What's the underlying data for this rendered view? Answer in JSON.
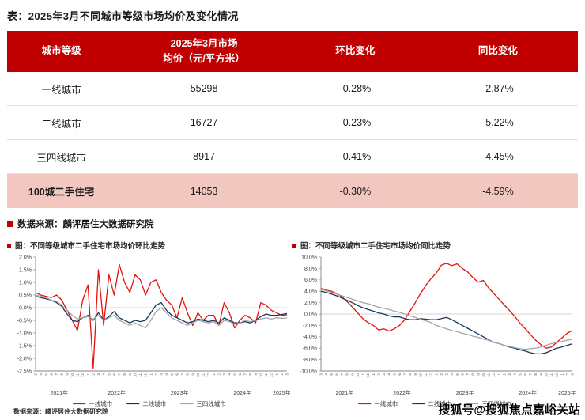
{
  "title": "表：2025年3月不同城市等级市场均价及变化情况",
  "table": {
    "headers": {
      "tier": "城市等级",
      "price_line1": "2025年3月市场",
      "price_line2": "均价（元/平方米）",
      "mom": "环比变化",
      "yoy": "同比变化"
    },
    "rows": [
      {
        "tier": "一线城市",
        "price": "55298",
        "mom": "-0.28%",
        "yoy": "-2.87%"
      },
      {
        "tier": "二线城市",
        "price": "16727",
        "mom": "-0.23%",
        "yoy": "-5.22%"
      },
      {
        "tier": "三四线城市",
        "price": "8917",
        "mom": "-0.41%",
        "yoy": "-4.45%"
      },
      {
        "tier": "100城二手住宅",
        "price": "14053",
        "mom": "-0.30%",
        "yoy": "-4.59%"
      }
    ]
  },
  "source_note": "数据来源：麟评居住大数据研究院",
  "charts_source_note": "数据来源：麟评居住大数据研究院",
  "watermark": "搜狐号@搜狐焦点嘉峪关站",
  "colors": {
    "header_red": "#c00000",
    "highlight_pink": "#f2c7bf",
    "tier1_line": "#e3120b",
    "tier2_line": "#17375e",
    "tier34_line": "#a6a6a6"
  },
  "chart_data": [
    {
      "type": "line",
      "title": "图：不同等级城市二手住宅市场均价环比走势",
      "ylabel": "环比变化(%)",
      "ylim": [
        -2.5,
        2.0
      ],
      "ystep": 0.5,
      "legend_position": "bottom",
      "grid": false,
      "x": [
        "3",
        "4",
        "5",
        "6",
        "7",
        "8",
        "9",
        "10",
        "11",
        "12",
        "1",
        "2",
        "3",
        "4",
        "5",
        "6",
        "7",
        "8",
        "9",
        "10",
        "11",
        "12",
        "1",
        "2",
        "3",
        "4",
        "5",
        "6",
        "7",
        "8",
        "9",
        "10",
        "11",
        "12",
        "1",
        "2",
        "3",
        "4",
        "5",
        "6",
        "7",
        "8",
        "9",
        "10",
        "11",
        "12",
        "1",
        "2",
        "3"
      ],
      "year_groups": [
        {
          "label": "2021年",
          "start": 0,
          "end": 9
        },
        {
          "label": "2022年",
          "start": 10,
          "end": 21
        },
        {
          "label": "2023年",
          "start": 22,
          "end": 33
        },
        {
          "label": "2024年",
          "start": 34,
          "end": 45
        },
        {
          "label": "2025年",
          "start": 46,
          "end": 48
        }
      ],
      "series": [
        {
          "name": "一线城市",
          "color": "#e3120b",
          "values": [
            0.6,
            0.5,
            0.45,
            0.4,
            0.5,
            0.3,
            -0.1,
            -0.5,
            -0.9,
            0.3,
            0.9,
            -2.4,
            1.5,
            -0.7,
            1.3,
            0.5,
            1.7,
            1.0,
            0.6,
            1.3,
            1.1,
            0.5,
            1.0,
            1.1,
            0.6,
            0.3,
            0.1,
            -0.4,
            0.4,
            -0.2,
            -0.7,
            -0.2,
            -0.5,
            -0.3,
            -0.3,
            -0.7,
            0.2,
            -0.2,
            -0.8,
            -0.5,
            -0.3,
            -0.4,
            -0.6,
            0.2,
            0.1,
            -0.1,
            -0.2,
            -0.3,
            -0.28
          ]
        },
        {
          "name": "二线城市",
          "color": "#17375e",
          "values": [
            0.45,
            0.4,
            0.35,
            0.3,
            0.2,
            0.05,
            -0.25,
            -0.5,
            -0.55,
            -0.4,
            -0.3,
            -0.5,
            -0.2,
            -0.5,
            -0.35,
            -0.15,
            -0.4,
            -0.5,
            -0.6,
            -0.5,
            -0.55,
            -0.5,
            -0.2,
            0.1,
            0.2,
            -0.1,
            -0.3,
            -0.4,
            -0.5,
            -0.6,
            -0.55,
            -0.45,
            -0.5,
            -0.55,
            -0.5,
            -0.6,
            -0.4,
            -0.5,
            -0.6,
            -0.6,
            -0.55,
            -0.6,
            -0.5,
            -0.35,
            -0.25,
            -0.3,
            -0.3,
            -0.27,
            -0.23
          ]
        },
        {
          "name": "三四线城市",
          "color": "#a6a6a6",
          "values": [
            0.5,
            0.45,
            0.4,
            0.3,
            0.25,
            0.1,
            -0.1,
            -0.3,
            -0.45,
            -0.4,
            -0.35,
            -0.45,
            -0.3,
            -0.5,
            -0.4,
            -0.3,
            -0.5,
            -0.6,
            -0.7,
            -0.6,
            -0.7,
            -0.8,
            -0.5,
            -0.15,
            0.0,
            -0.2,
            -0.4,
            -0.5,
            -0.6,
            -0.7,
            -0.6,
            -0.5,
            -0.55,
            -0.6,
            -0.55,
            -0.7,
            -0.5,
            -0.55,
            -0.65,
            -0.6,
            -0.5,
            -0.55,
            -0.5,
            -0.45,
            -0.4,
            -0.45,
            -0.4,
            -0.42,
            -0.41
          ]
        }
      ]
    },
    {
      "type": "line",
      "title": "图：不同等级城市二手住宅市场均价同比走势",
      "ylabel": "同比变化(%)",
      "ylim": [
        -10.0,
        10.0
      ],
      "ystep": 2.0,
      "legend_position": "bottom",
      "grid": false,
      "x": [
        "3",
        "4",
        "5",
        "6",
        "7",
        "8",
        "9",
        "10",
        "11",
        "12",
        "1",
        "2",
        "3",
        "4",
        "5",
        "6",
        "7",
        "8",
        "9",
        "10",
        "11",
        "12",
        "1",
        "2",
        "3",
        "4",
        "5",
        "6",
        "7",
        "8",
        "9",
        "10",
        "11",
        "12",
        "1",
        "2",
        "3",
        "4",
        "5",
        "6",
        "7",
        "8",
        "9",
        "10",
        "11",
        "12",
        "1",
        "2",
        "3"
      ],
      "year_groups": [
        {
          "label": "2021年",
          "start": 0,
          "end": 9
        },
        {
          "label": "2022年",
          "start": 10,
          "end": 21
        },
        {
          "label": "2023年",
          "start": 22,
          "end": 33
        },
        {
          "label": "2024年",
          "start": 34,
          "end": 45
        },
        {
          "label": "2025年",
          "start": 46,
          "end": 48
        }
      ],
      "series": [
        {
          "name": "一线城市",
          "color": "#e3120b",
          "values": [
            4.5,
            4.2,
            4.0,
            3.6,
            3.0,
            2.2,
            1.2,
            0.2,
            -0.8,
            -1.5,
            -2.0,
            -2.8,
            -2.6,
            -3.0,
            -2.6,
            -2.0,
            -1.0,
            0.5,
            2.0,
            3.6,
            5.0,
            6.2,
            7.2,
            8.6,
            8.9,
            8.5,
            8.8,
            8.0,
            7.4,
            6.4,
            5.6,
            5.9,
            4.6,
            3.6,
            2.6,
            1.6,
            0.6,
            -0.4,
            -1.6,
            -2.6,
            -3.6,
            -4.6,
            -5.4,
            -6.0,
            -5.8,
            -5.0,
            -4.2,
            -3.4,
            -2.87
          ]
        },
        {
          "name": "二线城市",
          "color": "#17375e",
          "values": [
            4.0,
            3.8,
            3.5,
            3.2,
            2.8,
            2.4,
            2.0,
            1.5,
            1.1,
            0.8,
            0.5,
            0.2,
            0.0,
            -0.3,
            -0.5,
            -0.5,
            -0.8,
            -1.0,
            -1.0,
            -0.8,
            -0.9,
            -1.0,
            -1.0,
            -0.8,
            -0.6,
            -1.0,
            -1.5,
            -2.0,
            -2.5,
            -3.0,
            -3.5,
            -4.0,
            -4.5,
            -5.0,
            -5.2,
            -5.5,
            -5.8,
            -6.0,
            -6.3,
            -6.5,
            -6.8,
            -7.0,
            -7.0,
            -6.8,
            -6.4,
            -6.0,
            -5.8,
            -5.5,
            -5.22
          ]
        },
        {
          "name": "三四线城市",
          "color": "#a6a6a6",
          "values": [
            4.3,
            4.1,
            3.8,
            3.5,
            3.2,
            2.9,
            2.6,
            2.3,
            2.0,
            1.8,
            1.5,
            1.2,
            1.0,
            0.8,
            0.5,
            0.3,
            0.0,
            -0.3,
            -0.6,
            -0.9,
            -1.2,
            -1.5,
            -2.0,
            -2.3,
            -2.6,
            -2.9,
            -3.1,
            -3.4,
            -3.6,
            -3.9,
            -4.1,
            -4.4,
            -4.6,
            -5.0,
            -5.2,
            -5.5,
            -5.7,
            -5.9,
            -6.1,
            -6.2,
            -6.1,
            -6.0,
            -5.8,
            -5.5,
            -5.2,
            -5.0,
            -4.8,
            -4.6,
            -4.45
          ]
        }
      ]
    }
  ]
}
